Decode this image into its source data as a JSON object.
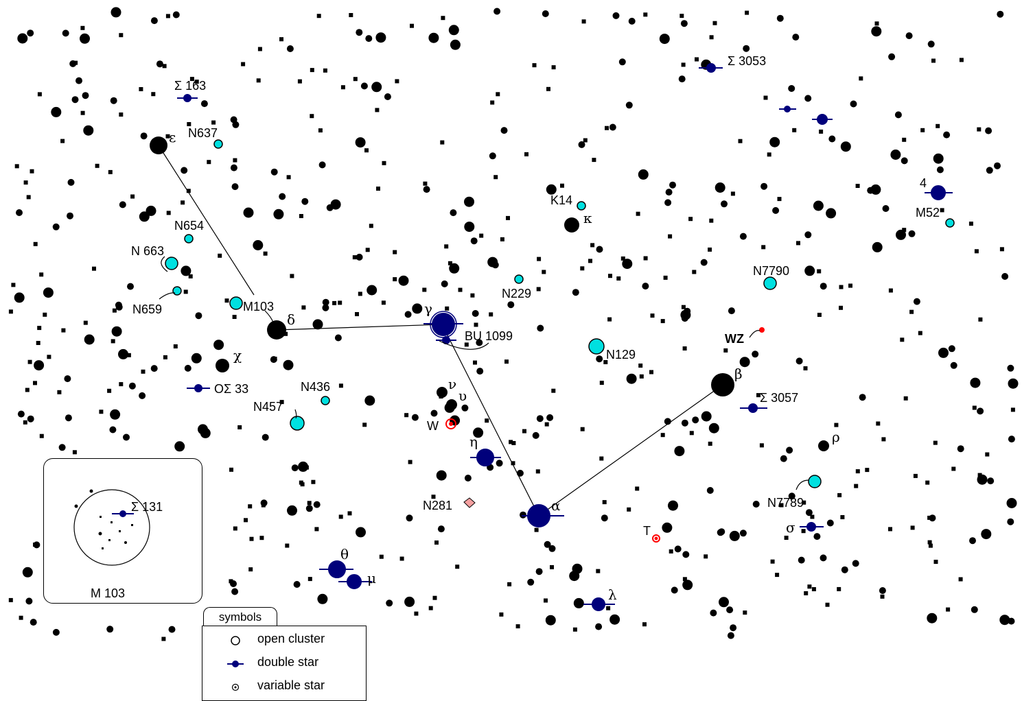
{
  "map": {
    "labels": {
      "sigma163": "Σ 163",
      "sigma3053": "Σ 3053",
      "sigma3057": "Σ 3057",
      "sigma131": "Σ 131",
      "os33": "OΣ  33",
      "bu1099": "BU 1099",
      "n637": "N637",
      "n654": "N654",
      "n663": "N 663",
      "n659": "N659",
      "m103": "M103",
      "n436": "N436",
      "n457": "N457",
      "n229": "N229",
      "k14": "K14",
      "n129": "N129",
      "n281": "N281",
      "m52": "M52",
      "n7790": "N7790",
      "n7789": "N7789",
      "wz": "WZ",
      "w": "W",
      "t": "T",
      "four": "4"
    },
    "greek": {
      "epsilon": "ε",
      "delta": "δ",
      "chi": "χ",
      "gamma": "γ",
      "nu": "ν",
      "upsilon": "υ",
      "eta": "η",
      "alpha": "α",
      "beta": "β",
      "kappa": "κ",
      "theta": "θ",
      "mu": "μ",
      "lambda": "λ",
      "rho": "ρ",
      "sigma": "σ"
    }
  },
  "inset": {
    "title": "M 103",
    "label": "Σ 131"
  },
  "legend": {
    "tab_label": "symbols",
    "items": [
      {
        "label": "open cluster",
        "icon": "open-circle-icon"
      },
      {
        "label": "double star",
        "icon": "double-star-icon"
      },
      {
        "label": "variable star",
        "icon": "variable-star-icon"
      }
    ]
  },
  "colors": {
    "star": "#000000",
    "double_star": "#00007b",
    "open_cluster": "#00e0e0",
    "variable_star": "#ff0000",
    "galaxy_pink": "#f5a0a0"
  }
}
